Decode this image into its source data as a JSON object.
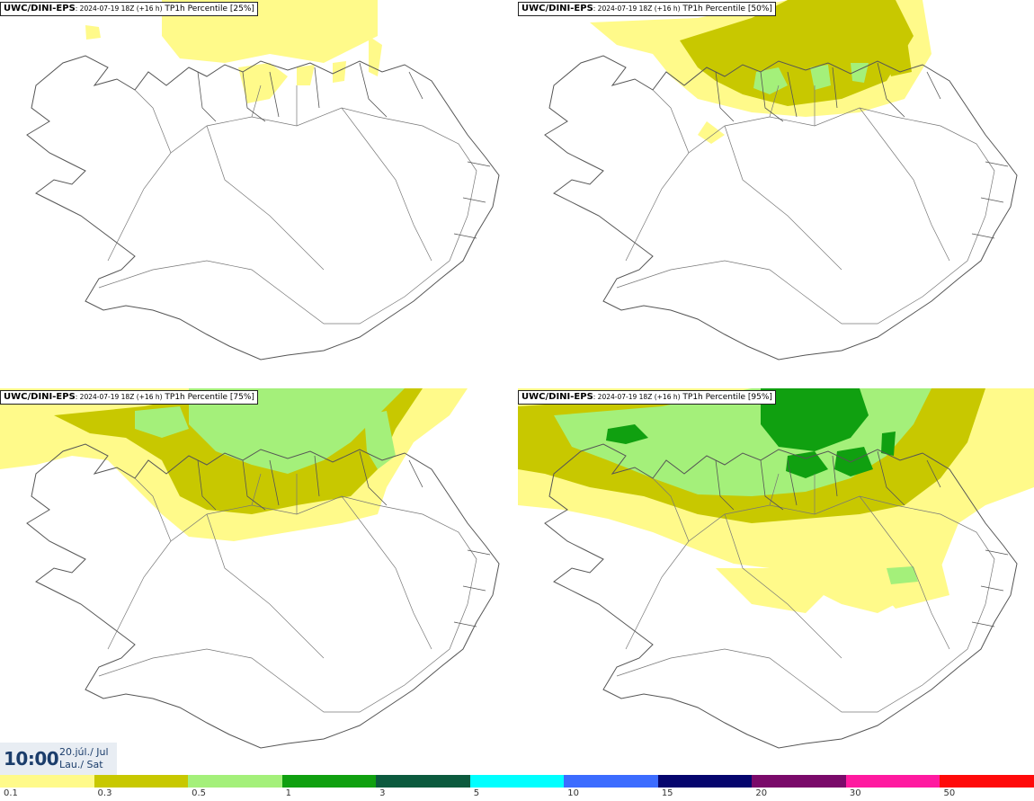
{
  "panels": [
    {
      "model": "UWC/DINI-EPS",
      "stamp": ": 2024-07-19 18Z (+16 h)",
      "field": "TP1h Percentile [25%]"
    },
    {
      "model": "UWC/DINI-EPS",
      "stamp": ": 2024-07-19 18Z (+16 h)",
      "field": "TP1h Percentile [50%]"
    },
    {
      "model": "UWC/DINI-EPS",
      "stamp": ": 2024-07-19 18Z (+16 h)",
      "field": "TP1h Percentile [75%]"
    },
    {
      "model": "UWC/DINI-EPS",
      "stamp": ": 2024-07-19 18Z (+16 h)",
      "field": "TP1h Percentile [95%]"
    }
  ],
  "valid_time": {
    "time": "10:00",
    "date_line1": "20.júl./ Jul",
    "date_line2": "Lau./ Sat"
  },
  "colorbar": {
    "colors": [
      "#fffa8a",
      "#c8c800",
      "#a4f07a",
      "#10a010",
      "#0c5a3e",
      "#00ffff",
      "#3c6cff",
      "#06066e",
      "#7a0a6a",
      "#ff1aa0",
      "#ff0a0a"
    ],
    "labels": [
      "0.1",
      "0.3",
      "0.5",
      "1",
      "3",
      "5",
      "10",
      "15",
      "20",
      "30",
      "50"
    ]
  }
}
